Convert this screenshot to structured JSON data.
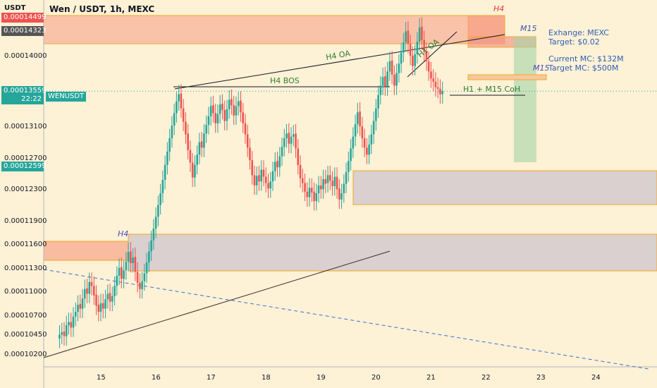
{
  "header": {
    "symbol": "USDT",
    "title": "Wen / USDT, 1h, MEXC"
  },
  "price_axis": {
    "ticks": [
      {
        "v": 0.00014,
        "label": "0.00014000"
      },
      {
        "v": 0.000131,
        "label": "0.00013100"
      },
      {
        "v": 0.000127,
        "label": "0.00012700"
      },
      {
        "v": 0.000123,
        "label": "0.00012300"
      },
      {
        "v": 0.000119,
        "label": "0.00011900"
      },
      {
        "v": 0.000116,
        "label": "0.00011600"
      },
      {
        "v": 0.000113,
        "label": "0.00011300"
      },
      {
        "v": 0.00011,
        "label": "0.00011000"
      },
      {
        "v": 0.000107,
        "label": "0.00010700"
      },
      {
        "v": 0.0001045,
        "label": "0.00010450"
      },
      {
        "v": 0.000102,
        "label": "0.00010200"
      }
    ],
    "tags": [
      {
        "v": 0.00014499,
        "label": "0.00014499",
        "color": "#ef5350"
      },
      {
        "v": 0.00014323,
        "label": "0.00014323",
        "color": "#555555"
      },
      {
        "v": 0.00013559,
        "label": "0.00013559",
        "extra": "22:22",
        "color": "#26a69a"
      },
      {
        "v": 0.00012599,
        "label": "0.00012599",
        "color": "#26a69a"
      }
    ],
    "symbol_tag": "WENUSDT"
  },
  "time_axis": {
    "labels": [
      "15",
      "16",
      "17",
      "18",
      "19",
      "20",
      "21",
      "22",
      "23",
      "24"
    ]
  },
  "annotations": {
    "h4_top": "H4",
    "m15_top": "M15",
    "h4_oa": "H4 OA",
    "h1_oa": "H1 OA",
    "h4_bos": "H4 BOS",
    "coh": "H1 + M15 CoH",
    "m15_mid": "M15",
    "h4_low": "H4",
    "exchange": "Exhange: MEXC",
    "target": "Target: $0.02",
    "current_mc": "Current MC: $132M",
    "target_mc": "Target MC: $500M"
  },
  "colors": {
    "up": "#26a69a",
    "down": "#ef5350",
    "zone_red": "#f6a58a",
    "zone_grey": "#c9c2cc",
    "zone_edge": "#f5a623"
  },
  "chart_data": {
    "type": "candlestick",
    "title": "Wen / USDT, 1h, MEXC",
    "x_axis": "date",
    "x_ticks": [
      "15",
      "16",
      "17",
      "18",
      "19",
      "20",
      "21",
      "22",
      "23",
      "24"
    ],
    "series": [
      {
        "x_start_day": 14.25,
        "x_step_day": 0.0417,
        "closes": [
          0.0001046,
          0.0001049,
          0.0001044,
          0.0001058,
          0.0001062,
          0.0001055,
          0.0001069,
          0.0001075,
          0.0001084,
          0.0001079,
          0.0001092,
          0.0001104,
          0.0001098,
          0.0001113,
          0.0001108,
          0.0001096,
          0.0001083,
          0.0001075,
          0.0001086,
          0.0001079,
          0.0001091,
          0.0001098,
          0.0001088,
          0.0001095,
          0.0001108,
          0.0001121,
          0.0001131,
          0.0001117,
          0.0001128,
          0.0001139,
          0.0001151,
          0.0001137,
          0.0001144,
          0.0001126,
          0.0001112,
          0.0001104,
          0.0001114,
          0.0001124,
          0.0001138,
          0.0001152,
          0.0001166,
          0.0001181,
          0.0001196,
          0.0001211,
          0.0001226,
          0.0001243,
          0.0001262,
          0.0001279,
          0.0001296,
          0.0001312,
          0.0001328,
          0.0001343,
          0.0001352,
          0.0001334,
          0.0001317,
          0.0001301,
          0.0001281,
          0.0001265,
          0.0001246,
          0.0001262,
          0.0001275,
          0.0001291,
          0.0001284,
          0.0001302,
          0.0001313,
          0.0001324,
          0.0001337,
          0.0001328,
          0.0001315,
          0.0001327,
          0.0001339,
          0.0001332,
          0.0001318,
          0.0001333,
          0.0001345,
          0.0001338,
          0.0001325,
          0.0001337,
          0.0001343,
          0.0001329,
          0.0001315,
          0.0001301,
          0.0001284,
          0.0001268,
          0.0001249,
          0.0001236,
          0.0001248,
          0.0001241,
          0.0001256,
          0.0001247,
          0.0001239,
          0.0001232,
          0.0001241,
          0.0001254,
          0.0001266,
          0.0001259,
          0.0001273,
          0.0001285,
          0.0001296,
          0.0001302,
          0.0001289,
          0.0001298,
          0.0001301,
          0.0001283,
          0.0001262,
          0.0001245,
          0.0001239,
          0.0001228,
          0.0001221,
          0.0001233,
          0.0001227,
          0.0001216,
          0.0001226,
          0.0001236,
          0.0001231,
          0.0001244,
          0.0001238,
          0.0001249,
          0.0001242,
          0.0001235,
          0.0001247,
          0.0001231,
          0.0001218,
          0.0001226,
          0.0001238,
          0.0001253,
          0.0001267,
          0.0001283,
          0.0001298,
          0.0001314,
          0.0001329,
          0.0001311,
          0.0001296,
          0.0001284,
          0.0001275,
          0.0001288,
          0.0001301,
          0.0001318,
          0.0001334,
          0.0001351,
          0.0001363,
          0.0001374,
          0.0001362,
          0.0001381,
          0.0001394,
          0.0001377,
          0.0001363,
          0.0001379,
          0.0001391,
          0.0001405,
          0.0001418,
          0.0001432,
          0.0001416,
          0.0001401,
          0.0001388,
          0.0001403,
          0.0001419,
          0.0001437,
          0.0001421,
          0.0001406,
          0.0001394,
          0.0001381,
          0.0001372,
          0.0001368,
          0.0001361,
          0.0001359,
          0.0001352,
          0.0001356
        ],
        "opens": [
          0.0001041,
          0.0001046,
          0.000105,
          0.0001044,
          0.0001058,
          0.0001062,
          0.0001055,
          0.0001069,
          0.0001075,
          0.0001085,
          0.0001079,
          0.0001092,
          0.0001105,
          0.0001098,
          0.0001113,
          0.0001108,
          0.0001097,
          0.0001084,
          0.0001075,
          0.0001086,
          0.0001079,
          0.0001091,
          0.0001099,
          0.0001088,
          0.0001095,
          0.0001108,
          0.0001121,
          0.0001132,
          0.0001117,
          0.0001128,
          0.0001139,
          0.0001152,
          0.0001137,
          0.0001145,
          0.0001126,
          0.0001112,
          0.0001104,
          0.0001114,
          0.0001124,
          0.0001138,
          0.0001152,
          0.0001166,
          0.0001181,
          0.0001196,
          0.0001211,
          0.0001226,
          0.0001243,
          0.0001262,
          0.0001279,
          0.0001296,
          0.0001312,
          0.0001328,
          0.0001343,
          0.0001353,
          0.0001334,
          0.0001317,
          0.0001302,
          0.0001281,
          0.0001265,
          0.0001246,
          0.0001262,
          0.0001275,
          0.0001292,
          0.0001284,
          0.0001302,
          0.0001313,
          0.0001324,
          0.0001338,
          0.0001328,
          0.0001315,
          0.0001327,
          0.000134,
          0.0001332,
          0.0001318,
          0.0001333,
          0.0001346,
          0.0001338,
          0.0001325,
          0.0001337,
          0.0001344,
          0.0001329,
          0.0001315,
          0.0001301,
          0.0001284,
          0.0001268,
          0.0001249,
          0.0001236,
          0.0001249,
          0.0001241,
          0.0001256,
          0.0001247,
          0.0001239,
          0.0001232,
          0.0001241,
          0.0001254,
          0.0001267,
          0.0001259,
          0.0001273,
          0.0001285,
          0.0001296,
          0.0001303,
          0.0001289,
          0.0001298,
          0.0001302,
          0.0001283,
          0.0001262,
          0.0001245,
          0.0001239,
          0.0001228,
          0.0001221,
          0.0001233,
          0.0001228,
          0.0001216,
          0.0001226,
          0.0001236,
          0.0001231,
          0.0001244,
          0.0001239,
          0.0001249,
          0.0001242,
          0.0001235,
          0.0001247,
          0.0001232,
          0.0001218,
          0.0001226,
          0.0001238,
          0.0001253,
          0.0001267,
          0.0001283,
          0.0001298,
          0.0001314,
          0.000133,
          0.0001311,
          0.0001296,
          0.0001284,
          0.0001275,
          0.0001288,
          0.0001301,
          0.0001318,
          0.0001334,
          0.0001351,
          0.0001363,
          0.0001375,
          0.0001362,
          0.0001381,
          0.0001395,
          0.0001377,
          0.0001363,
          0.0001379,
          0.0001391,
          0.0001405,
          0.0001418,
          0.0001433,
          0.0001416,
          0.0001401,
          0.0001388,
          0.0001403,
          0.0001419,
          0.0001438,
          0.0001421,
          0.0001406,
          0.0001394,
          0.0001381,
          0.0001372,
          0.0001368,
          0.0001361,
          0.0001359,
          0.0001352
        ]
      }
    ],
    "ylim": [
      0.0001005,
      0.0001472
    ]
  }
}
